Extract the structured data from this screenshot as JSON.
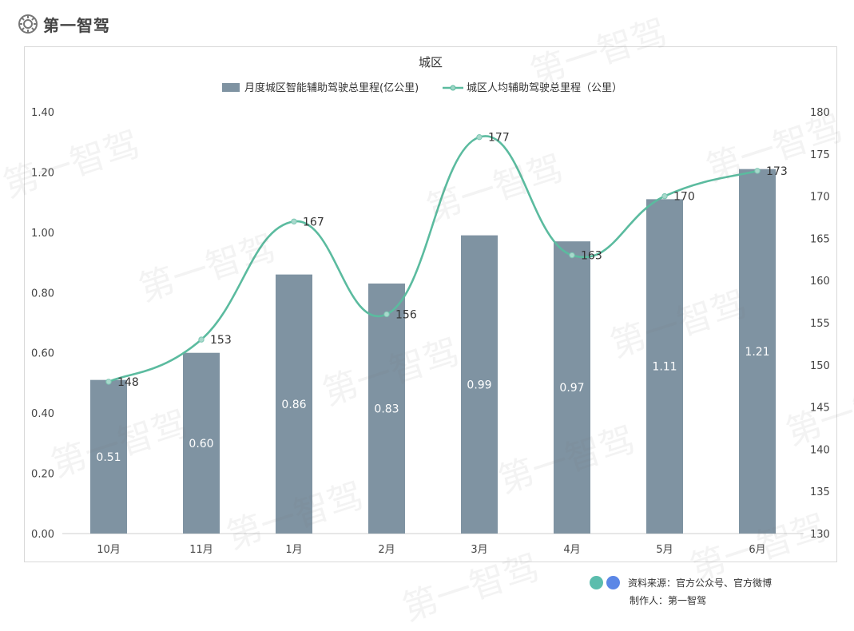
{
  "brand": {
    "name": "第一智驾",
    "logo_icon": "gear-icon"
  },
  "footer": {
    "source_label": "资料来源：官方公众号、官方微博",
    "maker_label": "制作人：第一智驾",
    "dot_colors": [
      "#5bbdad",
      "#5b87e6"
    ]
  },
  "watermark_text": "第一智驾",
  "chart_data": {
    "type": "bar",
    "title": "城区",
    "categories": [
      "10月",
      "11月",
      "1月",
      "2月",
      "3月",
      "4月",
      "5月",
      "6月"
    ],
    "series": [
      {
        "name": "月度城区智能辅助驾驶总里程(亿公里)",
        "type": "bar",
        "axis": "left",
        "color": "#7f93a2",
        "values": [
          0.51,
          0.6,
          0.86,
          0.83,
          0.99,
          0.97,
          1.11,
          1.21
        ],
        "labels": [
          "0.51",
          "0.60",
          "0.86",
          "0.83",
          "0.99",
          "0.97",
          "1.11",
          "1.21"
        ]
      },
      {
        "name": "城区人均辅助驾驶总里程（公里）",
        "type": "line",
        "axis": "right",
        "color": "#5bbb9f",
        "smooth": true,
        "values": [
          148,
          153,
          167,
          156,
          177,
          163,
          170,
          173
        ],
        "labels": [
          "148",
          "153",
          "167",
          "156",
          "177",
          "163",
          "170",
          "173"
        ]
      }
    ],
    "y_left": {
      "range": [
        0,
        1.4
      ],
      "ticks": [
        "0.00",
        "0.20",
        "0.40",
        "0.60",
        "0.80",
        "1.00",
        "1.20",
        "1.40"
      ]
    },
    "y_right": {
      "range": [
        130,
        180
      ],
      "ticks": [
        "130",
        "135",
        "140",
        "145",
        "150",
        "155",
        "160",
        "165",
        "170",
        "175",
        "180"
      ]
    },
    "grid": false,
    "legend": "top-center"
  }
}
